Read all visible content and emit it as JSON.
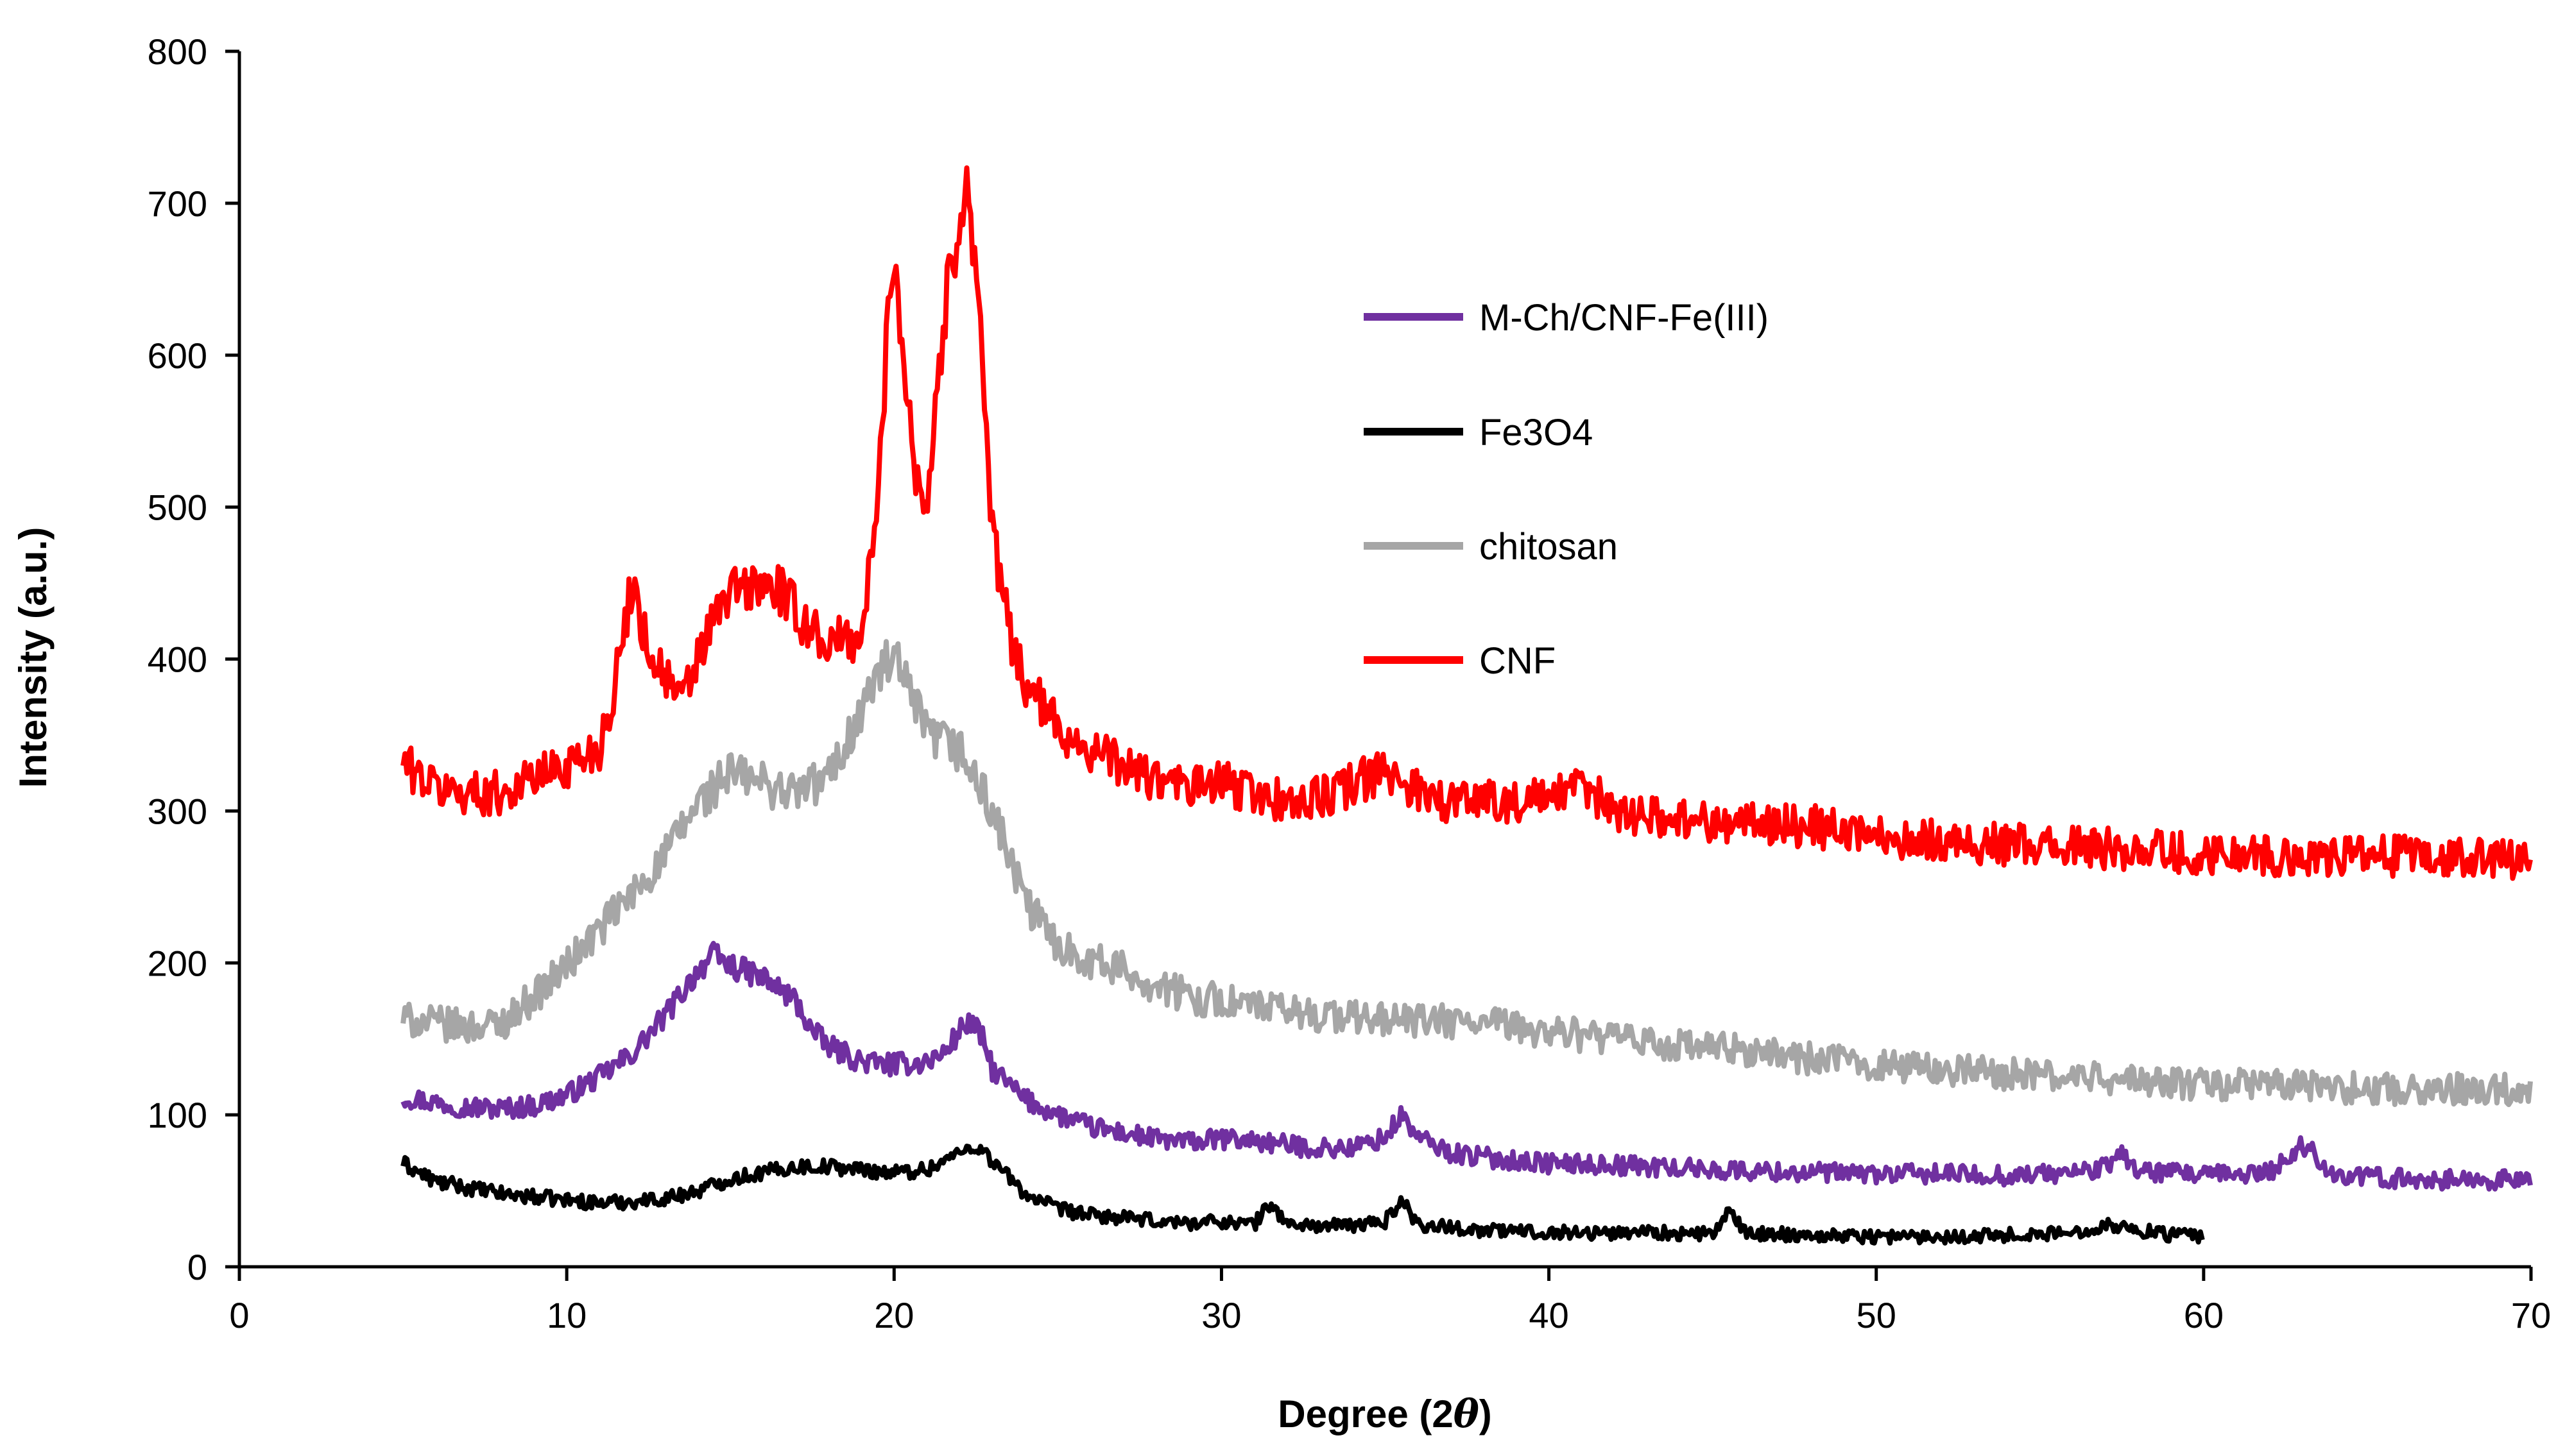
{
  "chart_data": {
    "type": "line",
    "title": "",
    "xlabel_prefix": "Degree (2",
    "xlabel_symbol": "θ",
    "xlabel_suffix": ")",
    "ylabel": "Intensity (a.u.)",
    "xlim": [
      0,
      70
    ],
    "ylim": [
      0,
      800
    ],
    "xticks": [
      0,
      10,
      20,
      30,
      40,
      50,
      60,
      70
    ],
    "yticks": [
      0,
      100,
      200,
      300,
      400,
      500,
      600,
      700,
      800
    ],
    "grid": false,
    "legend_position": "upper-right-inside",
    "series": [
      {
        "name": "M-Ch/CNF-Fe(III)",
        "color": "#7030A0",
        "x": [
          5,
          6,
          7,
          8,
          9,
          10,
          11,
          12,
          13,
          14,
          14.5,
          15,
          16,
          17,
          17.5,
          18,
          19,
          20,
          21,
          21.5,
          22,
          22.3,
          22.7,
          23,
          24,
          25,
          26,
          27,
          28,
          29,
          30,
          31,
          32,
          33,
          34,
          35,
          35.5,
          36,
          37,
          38,
          39,
          40,
          42,
          44,
          46,
          48,
          50,
          52,
          54,
          56,
          57,
          57.5,
          58,
          60,
          62,
          62.5,
          63,
          63.5,
          64,
          66,
          68,
          70
        ],
        "y": [
          112,
          108,
          105,
          104,
          106,
          113,
          125,
          140,
          165,
          195,
          205,
          198,
          190,
          175,
          155,
          145,
          135,
          133,
          135,
          140,
          155,
          162,
          150,
          130,
          110,
          100,
          92,
          88,
          84,
          82,
          84,
          83,
          80,
          78,
          78,
          85,
          100,
          85,
          75,
          72,
          70,
          68,
          67,
          65,
          63,
          62,
          61,
          61,
          60,
          62,
          65,
          75,
          63,
          60,
          62,
          70,
          80,
          72,
          60,
          58,
          57,
          57
        ]
      },
      {
        "name": "Fe3O4",
        "color": "#000000",
        "x": [
          5,
          6,
          7,
          8,
          9,
          10,
          11,
          12,
          13,
          14,
          15,
          16,
          17,
          18,
          19,
          20,
          21,
          22,
          22.5,
          23,
          24,
          25,
          26,
          27,
          28,
          29,
          30,
          31,
          31.5,
          32,
          33,
          34,
          35,
          35.5,
          36,
          38,
          40,
          42,
          43,
          44,
          45,
          45.5,
          46,
          48,
          50,
          52,
          54,
          56,
          57,
          58,
          59,
          60
        ],
        "y": [
          68,
          56,
          52,
          48,
          46,
          44,
          42,
          43,
          45,
          50,
          58,
          62,
          66,
          66,
          64,
          62,
          64,
          75,
          80,
          70,
          48,
          38,
          34,
          32,
          30,
          29,
          30,
          28,
          42,
          28,
          27,
          27,
          30,
          44,
          28,
          24,
          23,
          22,
          24,
          21,
          22,
          36,
          22,
          21,
          20,
          20,
          21,
          22,
          28,
          24,
          21,
          20
        ]
      },
      {
        "name": "chitosan",
        "color": "#A6A6A6",
        "x": [
          5,
          6,
          7,
          8,
          9,
          10,
          11,
          12,
          13,
          14,
          15,
          16,
          17,
          18,
          19,
          19.5,
          20,
          20.5,
          21,
          22,
          23,
          24,
          25,
          26,
          27,
          28,
          29,
          30,
          32,
          34,
          36,
          38,
          40,
          42,
          44,
          46,
          48,
          50,
          52,
          54,
          56,
          58,
          60,
          62,
          64,
          66,
          68,
          70
        ],
        "y": [
          163,
          160,
          158,
          160,
          178,
          198,
          222,
          245,
          270,
          305,
          325,
          318,
          312,
          322,
          365,
          390,
          400,
          375,
          350,
          340,
          300,
          240,
          212,
          202,
          195,
          185,
          178,
          175,
          168,
          164,
          162,
          160,
          155,
          150,
          145,
          142,
          137,
          133,
          130,
          127,
          125,
          122,
          120,
          120,
          118,
          117,
          117,
          117
        ]
      },
      {
        "name": "CNF",
        "color": "#FF0000",
        "x": [
          5,
          6,
          7,
          8,
          9,
          10,
          11,
          11.5,
          12,
          12.5,
          13,
          13.5,
          14,
          14.5,
          15,
          16,
          16.5,
          17,
          18,
          19,
          19.5,
          19.8,
          20,
          20.3,
          20.6,
          21,
          21.5,
          22,
          22.3,
          22.7,
          23,
          23.5,
          24,
          25,
          26,
          27,
          28,
          29,
          30,
          31,
          32,
          33,
          34,
          35,
          36,
          37,
          38,
          39,
          40,
          41,
          42,
          43,
          44,
          46,
          48,
          50,
          52,
          54,
          56,
          58,
          60,
          62,
          64,
          66,
          68,
          70
        ],
        "y": [
          332,
          315,
          312,
          312,
          322,
          330,
          342,
          385,
          452,
          405,
          390,
          370,
          400,
          425,
          445,
          448,
          445,
          430,
          410,
          415,
          500,
          620,
          670,
          600,
          530,
          500,
          620,
          695,
          710,
          600,
          480,
          420,
          385,
          355,
          340,
          330,
          320,
          315,
          318,
          312,
          305,
          308,
          318,
          325,
          315,
          305,
          310,
          305,
          308,
          315,
          302,
          296,
          295,
          292,
          290,
          284,
          280,
          278,
          276,
          275,
          272,
          271,
          270,
          270,
          268,
          268
        ]
      }
    ]
  }
}
